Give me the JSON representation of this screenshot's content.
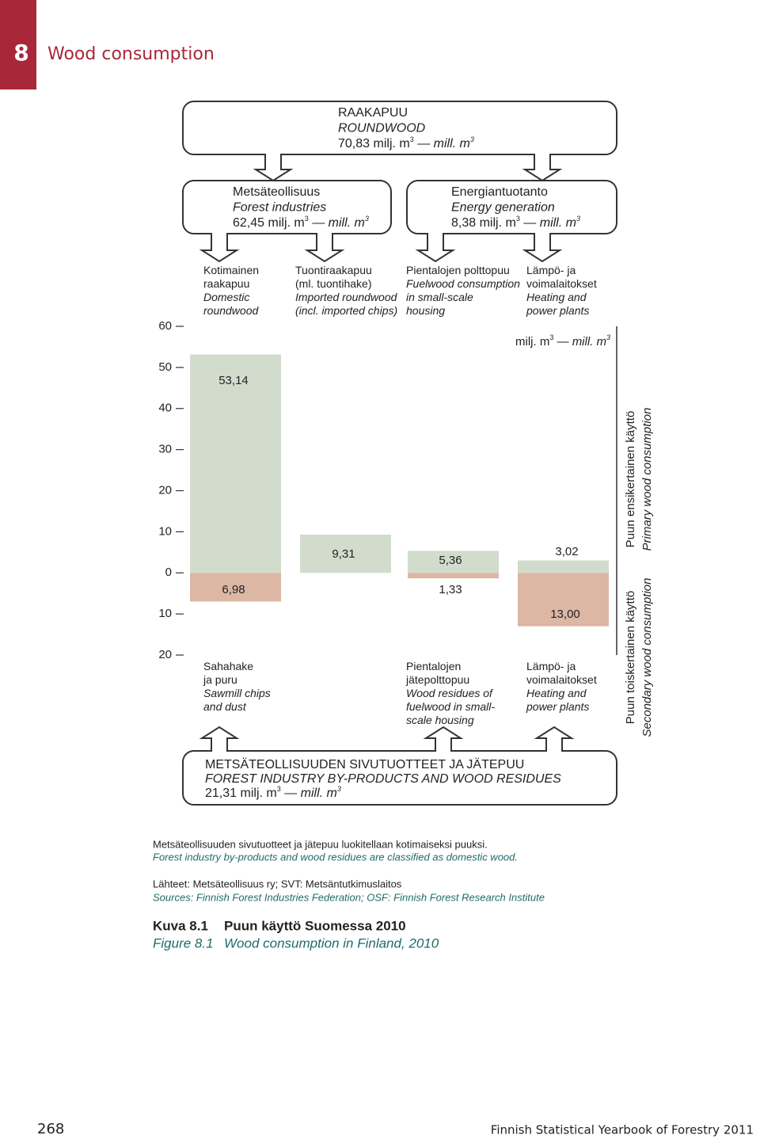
{
  "header": {
    "chapter": "8",
    "title": "Wood consumption"
  },
  "unit": {
    "fi": "milj. m",
    "exp": "3",
    "sep": "—",
    "en": "mill. m"
  },
  "boxes": {
    "roundwood": {
      "fi": "RAAKAPUU",
      "en": "ROUNDWOOD",
      "amount": "70,83"
    },
    "forest_industries": {
      "fi": "Metsäteollisuus",
      "en": "Forest industries",
      "amount": "62,45"
    },
    "energy": {
      "fi": "Energiantuotanto",
      "en": "Energy generation",
      "amount": "8,38"
    },
    "byproducts": {
      "fi": "METSÄTEOLLISUUDEN SIVUTUOTTEET JA JÄTEPUU",
      "en": "FOREST INDUSTRY BY-PRODUCTS AND WOOD RESIDUES",
      "amount": "21,31"
    }
  },
  "chart_data": {
    "type": "bar",
    "column_labels": [
      {
        "fi": [
          "Kotimainen",
          "raakapuu"
        ],
        "en": [
          "Domestic",
          "roundwood"
        ]
      },
      {
        "fi": [
          "Tuontiraakapuu",
          "(ml. tuontihake)"
        ],
        "en": [
          "Imported roundwood",
          "(incl. imported chips)"
        ]
      },
      {
        "fi": [
          "Pientalojen polttopuu"
        ],
        "en": [
          "Fuelwood consumption",
          "in small-scale",
          "housing"
        ]
      },
      {
        "fi": [
          "Lämpö- ja",
          "voimalaitokset"
        ],
        "en": [
          "Heating and",
          "power plants"
        ]
      }
    ],
    "bottom_labels": [
      {
        "fi": [
          "Sahahake",
          "ja puru"
        ],
        "en": [
          "Sawmill chips",
          "and dust"
        ]
      },
      null,
      {
        "fi": [
          "Pientalojen",
          "jätepolttopuu"
        ],
        "en": [
          "Wood residues of",
          "fuelwood in small-",
          "scale housing"
        ]
      },
      {
        "fi": [
          "Lämpö- ja",
          "voimalaitokset"
        ],
        "en": [
          "Heating and",
          "power plants"
        ]
      }
    ],
    "series": [
      {
        "name": "Puun ensikertainen käyttö",
        "name_en": "Primary wood consumption",
        "color": "#d2dccd",
        "values": [
          53.14,
          9.31,
          5.36,
          3.02
        ],
        "value_labels": [
          "53,14",
          "9,31",
          "5,36",
          "3,02"
        ]
      },
      {
        "name": "Puun toiskertainen käyttö",
        "name_en": "Secondary wood consumption",
        "color": "#dcb7a4",
        "values": [
          -6.98,
          null,
          -1.33,
          -13.0
        ],
        "value_labels": [
          "6,98",
          null,
          "1,33",
          "13,00"
        ]
      }
    ],
    "ylim": [
      -20,
      60
    ],
    "yticks": [
      60,
      50,
      40,
      30,
      20,
      10,
      0,
      {
        "value": -10,
        "label": "10"
      },
      {
        "value": -20,
        "label": "20"
      }
    ]
  },
  "notes": [
    {
      "fi": "Metsäteollisuuden sivutuotteet ja jätepuu luokitellaan kotimaiseksi puuksi.",
      "en": "Forest industry by-products and wood residues are classified as domestic wood."
    },
    {
      "fi": "Lähteet: Metsäteollisuus ry; SVT: Metsäntutkimuslaitos",
      "en": "Sources: Finnish Forest Industries Federation; OSF: Finnish Forest Research Institute"
    }
  ],
  "caption": {
    "fi_label": "Kuva 8.1",
    "fi": "Puun käyttö Suomessa 2010",
    "en_label": "Figure 8.1",
    "en": "Wood consumption in Finland, 2010"
  },
  "footer": {
    "page": "268",
    "publication": "Finnish Statistical Yearbook of Forestry 2011"
  }
}
